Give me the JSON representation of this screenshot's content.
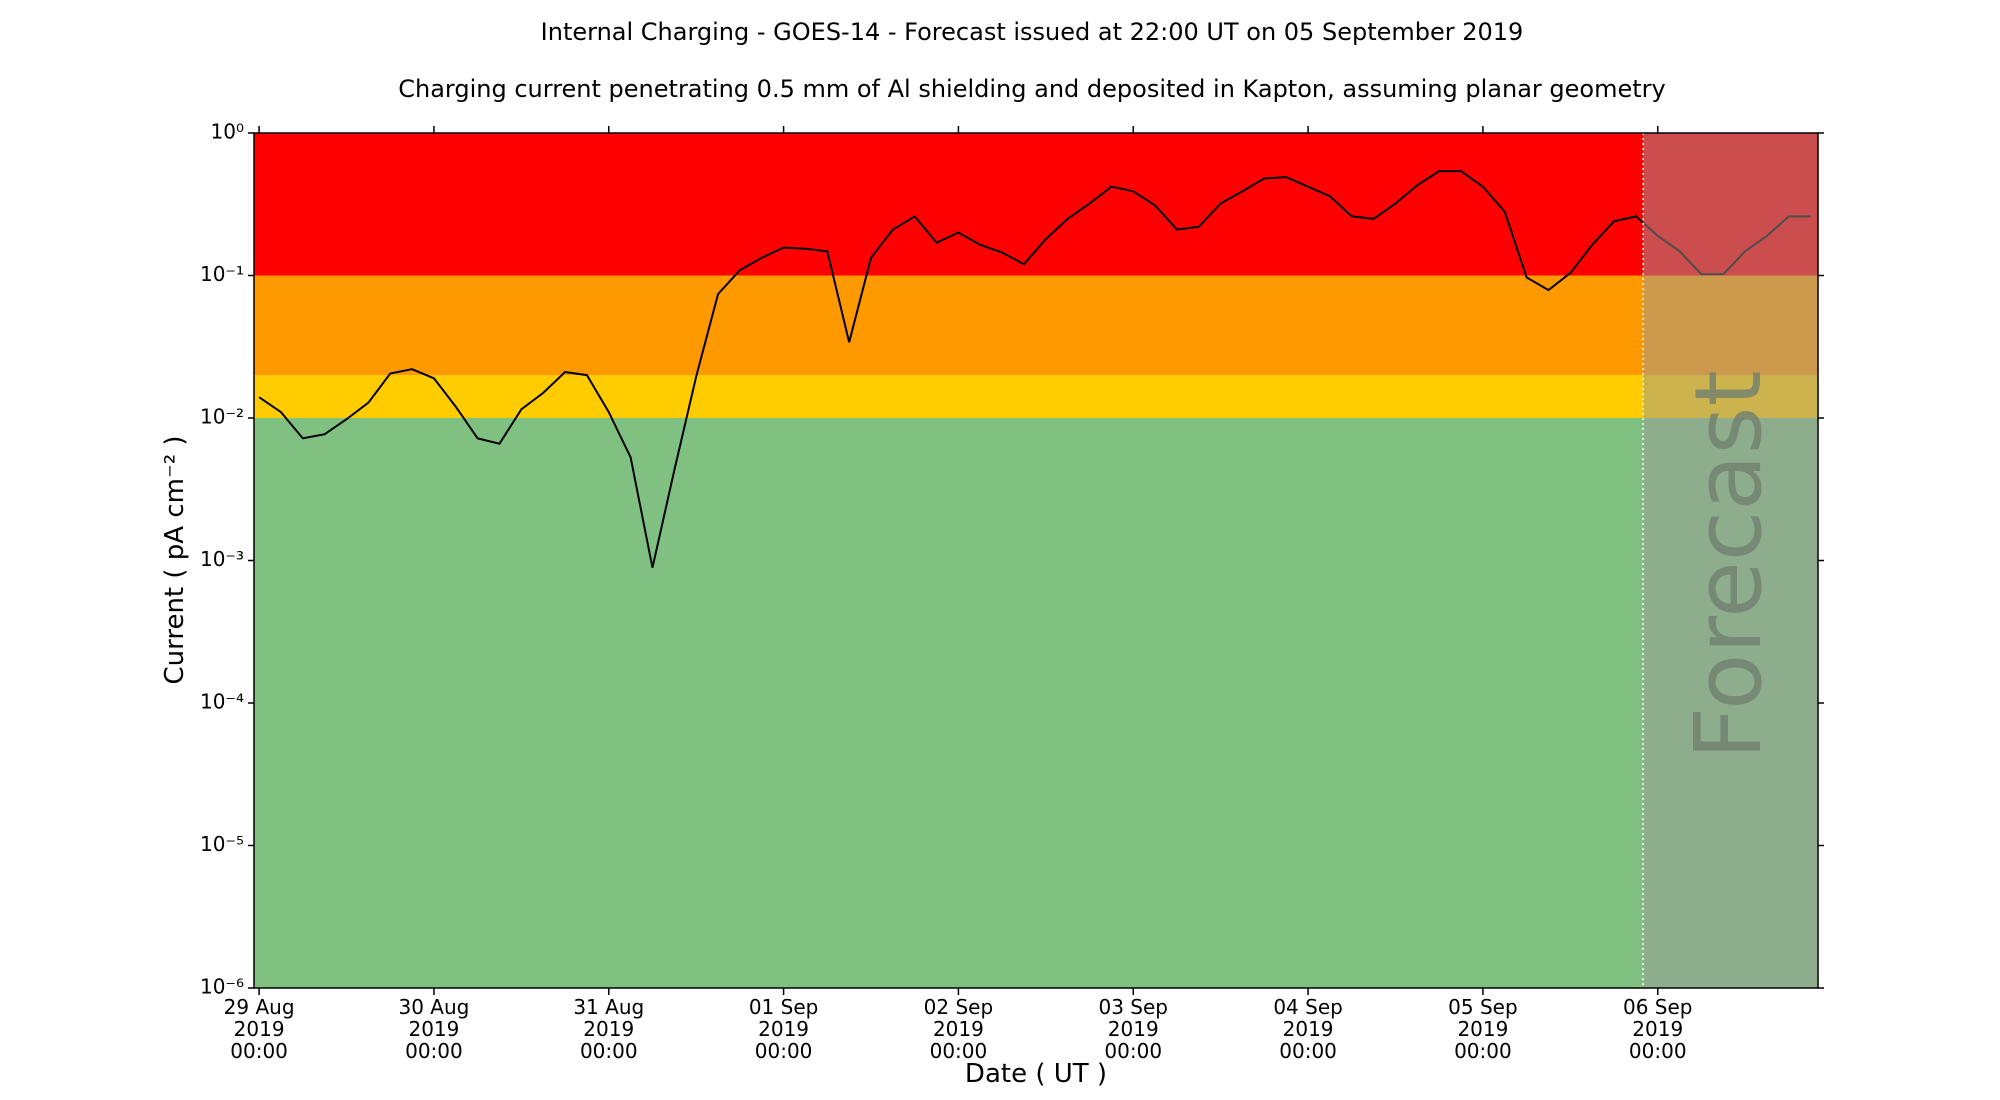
{
  "chart_data": {
    "type": "line",
    "title": "Internal Charging - GOES-14 - Forecast issued at 22:00 UT on 05 September 2019",
    "subtitle": "Charging current penetrating 0.5 mm of Al shielding and deposited in Kapton, assuming planar geometry",
    "x_label": "Date ( UT )",
    "y_label": "Current ( pA cm⁻² )",
    "y_scale": "log",
    "color": "#000000",
    "xlim": [
      "2019-08-28 23:18",
      "2019-09-06 22:00"
    ],
    "ylim": [
      1e-06,
      1
    ],
    "yticks": [
      {
        "value": 1e-06,
        "label": "10⁻⁶"
      },
      {
        "value": 1e-05,
        "label": "10⁻⁵"
      },
      {
        "value": 0.0001,
        "label": "10⁻⁴"
      },
      {
        "value": 0.001,
        "label": "10⁻³"
      },
      {
        "value": 0.01,
        "label": "10⁻²"
      },
      {
        "value": 0.1,
        "label": "10⁻¹"
      },
      {
        "value": 1,
        "label": "10⁰"
      }
    ],
    "xticks": [
      {
        "value": "2019-08-29 00:00",
        "label": "29 Aug\n2019\n00:00"
      },
      {
        "value": "2019-08-30 00:00",
        "label": "30 Aug\n2019\n00:00"
      },
      {
        "value": "2019-08-31 00:00",
        "label": "31 Aug\n2019\n00:00"
      },
      {
        "value": "2019-09-01 00:00",
        "label": "01 Sep\n2019\n00:00"
      },
      {
        "value": "2019-09-02 00:00",
        "label": "02 Sep\n2019\n00:00"
      },
      {
        "value": "2019-09-03 00:00",
        "label": "03 Sep\n2019\n00:00"
      },
      {
        "value": "2019-09-04 00:00",
        "label": "04 Sep\n2019\n00:00"
      },
      {
        "value": "2019-09-05 00:00",
        "label": "05 Sep\n2019\n00:00"
      },
      {
        "value": "2019-09-06 00:00",
        "label": "06 Sep\n2019\n00:00"
      }
    ],
    "bands": [
      {
        "from": 1e-06,
        "to": 0.01,
        "color": "#80c080"
      },
      {
        "from": 0.01,
        "to": 0.02,
        "color": "#ffcc00"
      },
      {
        "from": 0.02,
        "to": 0.1,
        "color": "#ff9900"
      },
      {
        "from": 0.1,
        "to": 1,
        "color": "#ff0000"
      }
    ],
    "forecast": {
      "start": "2019-09-05 22:00",
      "label": "Forecast"
    },
    "x": [
      "2019-08-29 00:00",
      "2019-08-29 03:00",
      "2019-08-29 06:00",
      "2019-08-29 09:00",
      "2019-08-29 12:00",
      "2019-08-29 15:00",
      "2019-08-29 18:00",
      "2019-08-29 21:00",
      "2019-08-30 00:00",
      "2019-08-30 03:00",
      "2019-08-30 06:00",
      "2019-08-30 09:00",
      "2019-08-30 12:00",
      "2019-08-30 15:00",
      "2019-08-30 18:00",
      "2019-08-30 21:00",
      "2019-08-31 00:00",
      "2019-08-31 03:00",
      "2019-08-31 06:00",
      "2019-08-31 09:00",
      "2019-08-31 12:00",
      "2019-08-31 15:00",
      "2019-08-31 18:00",
      "2019-08-31 21:00",
      "2019-09-01 00:00",
      "2019-09-01 03:00",
      "2019-09-01 06:00",
      "2019-09-01 09:00",
      "2019-09-01 12:00",
      "2019-09-01 15:00",
      "2019-09-01 18:00",
      "2019-09-01 21:00",
      "2019-09-02 00:00",
      "2019-09-02 03:00",
      "2019-09-02 06:00",
      "2019-09-02 09:00",
      "2019-09-02 12:00",
      "2019-09-02 15:00",
      "2019-09-02 18:00",
      "2019-09-02 21:00",
      "2019-09-03 00:00",
      "2019-09-03 03:00",
      "2019-09-03 06:00",
      "2019-09-03 09:00",
      "2019-09-03 12:00",
      "2019-09-03 15:00",
      "2019-09-03 18:00",
      "2019-09-03 21:00",
      "2019-09-04 00:00",
      "2019-09-04 03:00",
      "2019-09-04 06:00",
      "2019-09-04 09:00",
      "2019-09-04 12:00",
      "2019-09-04 15:00",
      "2019-09-04 18:00",
      "2019-09-04 21:00",
      "2019-09-05 00:00",
      "2019-09-05 03:00",
      "2019-09-05 06:00",
      "2019-09-05 09:00",
      "2019-09-05 12:00",
      "2019-09-05 15:00",
      "2019-09-05 18:00",
      "2019-09-05 21:00",
      "2019-09-06 00:00",
      "2019-09-06 03:00",
      "2019-09-06 06:00",
      "2019-09-06 09:00",
      "2019-09-06 12:00",
      "2019-09-06 15:00",
      "2019-09-06 18:00",
      "2019-09-06 21:00"
    ],
    "values": [
      0.014,
      0.011,
      0.0072,
      0.0077,
      0.0098,
      0.0128,
      0.0205,
      0.022,
      0.019,
      0.012,
      0.0072,
      0.0066,
      0.0115,
      0.015,
      0.021,
      0.02,
      0.011,
      0.0053,
      0.00089,
      0.0043,
      0.0195,
      0.074,
      0.109,
      0.133,
      0.157,
      0.154,
      0.148,
      0.034,
      0.133,
      0.21,
      0.26,
      0.17,
      0.2,
      0.164,
      0.145,
      0.12,
      0.18,
      0.25,
      0.32,
      0.42,
      0.39,
      0.31,
      0.21,
      0.22,
      0.32,
      0.39,
      0.48,
      0.49,
      0.42,
      0.36,
      0.26,
      0.25,
      0.32,
      0.43,
      0.54,
      0.54,
      0.42,
      0.28,
      0.097,
      0.079,
      0.104,
      0.164,
      0.24,
      0.26,
      0.19,
      0.148,
      0.102,
      0.102,
      0.148,
      0.19,
      0.26,
      0.26
    ]
  }
}
